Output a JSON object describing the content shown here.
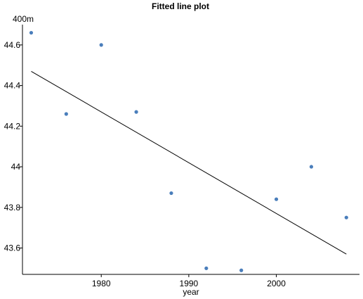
{
  "chart_data": {
    "type": "scatter",
    "title": "Fitted line plot",
    "xlabel": "year",
    "ylabel": "400m",
    "xlim": [
      1971,
      2009.5
    ],
    "ylim": [
      43.47,
      44.7
    ],
    "x_ticks": [
      1980,
      1990,
      2000
    ],
    "y_ticks": [
      43.6,
      43.8,
      44,
      44.2,
      44.4,
      44.6
    ],
    "x_tick_labels": [
      "1980",
      "1990",
      "2000"
    ],
    "y_tick_labels": [
      "43.6",
      "43.8",
      "44",
      "44.2",
      "44.4",
      "44.6"
    ],
    "grid": false,
    "legend": "none",
    "point_color": "#4a7ebb",
    "line_color": "#000000",
    "series": [
      {
        "kind": "points",
        "x": [
          1972,
          1976,
          1980,
          1984,
          1988,
          1992,
          1996,
          2000,
          2004,
          2008
        ],
        "y": [
          44.66,
          44.26,
          44.6,
          44.27,
          43.87,
          43.5,
          43.49,
          43.84,
          44.0,
          43.75
        ]
      },
      {
        "kind": "fitted-line",
        "x": [
          1972,
          2008
        ],
        "y": [
          44.47,
          43.57
        ]
      }
    ]
  }
}
